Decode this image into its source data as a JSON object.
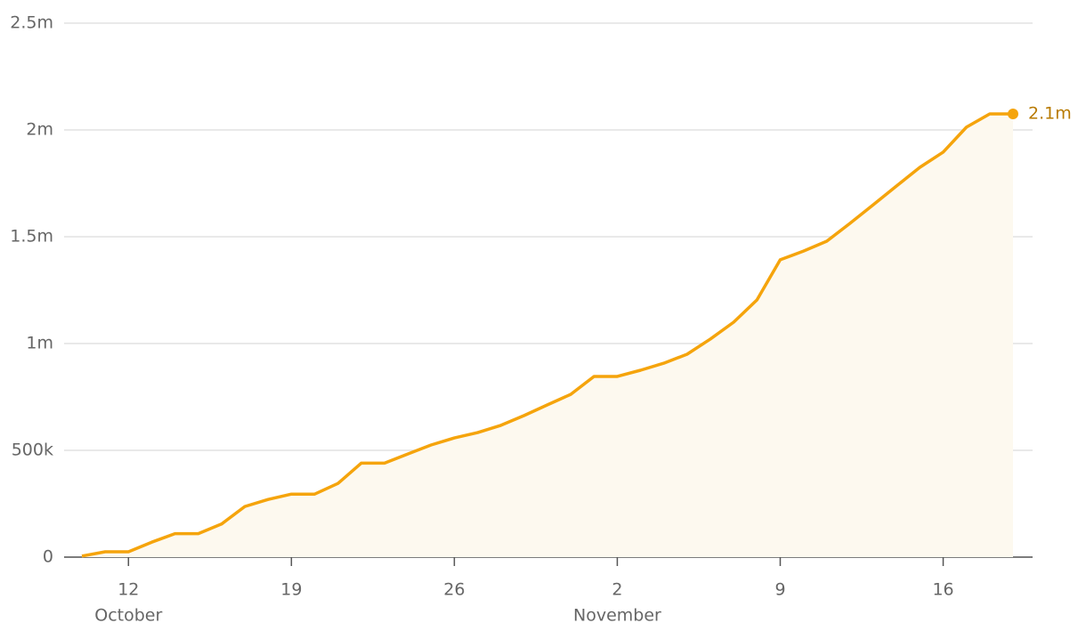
{
  "chart_data": {
    "type": "area",
    "x": [
      "10 October",
      "11 October",
      "12 October",
      "13 October",
      "14 October",
      "15 October",
      "16 October",
      "17 October",
      "18 October",
      "19 October",
      "20 October",
      "21 October",
      "22 October",
      "23 October",
      "24 October",
      "25 October",
      "26 October",
      "27 October",
      "28 October",
      "29 October",
      "30 October",
      "31 October",
      "1 November",
      "2 November",
      "3 November",
      "4 November",
      "5 November",
      "6 November",
      "7 November",
      "8 November",
      "9 November",
      "10 November",
      "11 November",
      "12 November",
      "13 November",
      "14 November",
      "15 November",
      "16 November",
      "17 November",
      "18 November",
      "19 November"
    ],
    "series": [
      {
        "color": "#f5a40c",
        "values": [
          5000,
          25000,
          25000,
          70000,
          110000,
          110000,
          155000,
          237000,
          270000,
          295000,
          295000,
          345000,
          440000,
          440000,
          483000,
          525000,
          558000,
          583000,
          617000,
          663000,
          713000,
          762000,
          846000,
          846000,
          875000,
          908000,
          950000,
          1021000,
          1100000,
          1204000,
          1392000,
          1433000,
          1479000,
          1563000,
          1650000,
          1738000,
          1825000,
          1896000,
          2013000,
          2075000,
          2075000
        ],
        "value_labels": [
          null,
          null,
          null,
          null,
          null,
          null,
          null,
          null,
          null,
          null,
          null,
          null,
          null,
          null,
          null,
          null,
          null,
          null,
          null,
          null,
          null,
          null,
          null,
          null,
          null,
          null,
          null,
          null,
          null,
          null,
          null,
          null,
          null,
          null,
          null,
          null,
          null,
          null,
          null,
          null,
          "2.1m"
        ]
      }
    ],
    "ylim": [
      0,
      2500000
    ],
    "yticks": [
      0,
      {
        "value": 500000,
        "label": "500k"
      },
      {
        "value": 1000000,
        "label": "1m"
      },
      {
        "value": 1500000,
        "label": "1.5m"
      },
      {
        "value": 2000000,
        "label": "2m"
      },
      {
        "value": 2500000,
        "label": "2.5m"
      }
    ],
    "xticks": [
      {
        "value": "12 October",
        "label": "12"
      },
      {
        "value": "19 October",
        "label": "19"
      },
      {
        "value": "26 October",
        "label": "26"
      },
      {
        "value": "2 November",
        "label": "2"
      },
      {
        "value": "9 November",
        "label": "9"
      },
      {
        "value": "16 November",
        "label": "16"
      }
    ],
    "x_month_labels": [
      {
        "value": "12 October",
        "label": "October"
      },
      {
        "value": "2 November",
        "label": "November"
      }
    ],
    "grid": true
  }
}
